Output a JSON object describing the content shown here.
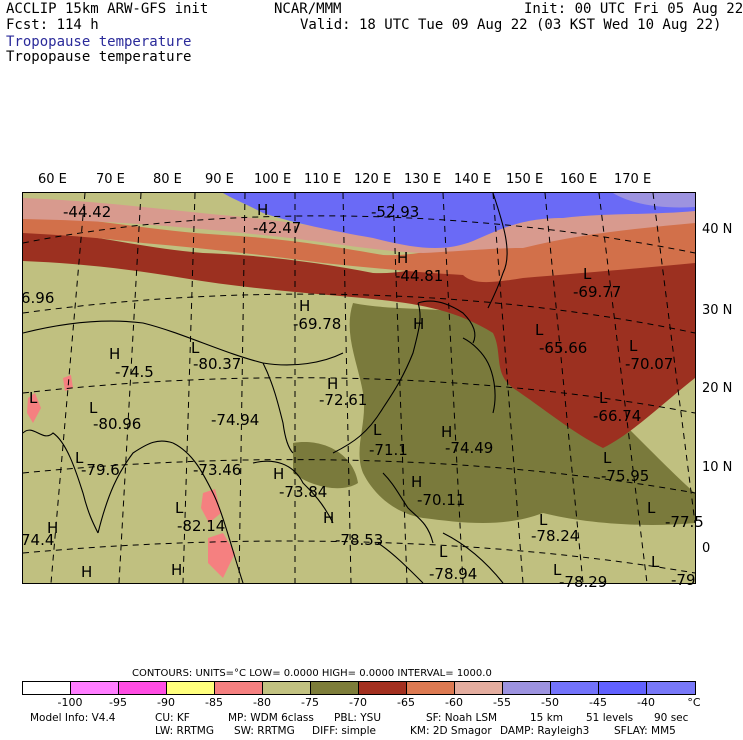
{
  "header": {
    "model": "ACCLIP 15km ARW-GFS init",
    "center": "NCAR/MMM",
    "init": "Init: 00 UTC Fri 05 Aug 22",
    "fcst": "Fcst:  114 h",
    "valid": "Valid: 18 UTC Tue 09 Aug 22 (03 KST Wed 10 Aug 22)",
    "field_title_1": "Tropopause temperature",
    "field_title_2": "Tropopause temperature"
  },
  "map": {
    "lon_labels": [
      "60 E",
      "70 E",
      "80 E",
      "90 E",
      "100 E",
      "110 E",
      "120 E",
      "130 E",
      "140 E",
      "150 E",
      "160 E",
      "170 E"
    ],
    "lat_labels": [
      "40 N",
      "30 N",
      "20 N",
      "10 N",
      "0"
    ],
    "annotations": [
      {
        "text": "-44.42"
      },
      {
        "text": "H"
      },
      {
        "text": "-42.47"
      },
      {
        "text": "-52.93"
      },
      {
        "text": "H"
      },
      {
        "text": "-44.81"
      },
      {
        "text": "L"
      },
      {
        "text": "-69.77"
      },
      {
        "text": "6.96"
      },
      {
        "text": "H"
      },
      {
        "text": "-69.78"
      },
      {
        "text": "L"
      },
      {
        "text": "-65.66"
      },
      {
        "text": "L"
      },
      {
        "text": "-70.07"
      },
      {
        "text": "L"
      },
      {
        "text": "-80.37"
      },
      {
        "text": "H"
      },
      {
        "text": "-74.5"
      },
      {
        "text": "H"
      },
      {
        "text": "-72.61"
      },
      {
        "text": "L"
      },
      {
        "text": "-66.74"
      },
      {
        "text": "L"
      },
      {
        "text": "-80.96"
      },
      {
        "text": "-74.94"
      },
      {
        "text": "L"
      },
      {
        "text": "H"
      },
      {
        "text": "-74.49"
      },
      {
        "text": "-71.1"
      },
      {
        "text": "L"
      },
      {
        "text": "-79.6"
      },
      {
        "text": "-73.46"
      },
      {
        "text": "L"
      },
      {
        "text": "-75.95"
      },
      {
        "text": "H"
      },
      {
        "text": "-73.84"
      },
      {
        "text": "H"
      },
      {
        "text": "-70.11"
      },
      {
        "text": "L"
      },
      {
        "text": "-82.14"
      },
      {
        "text": "-78.53"
      },
      {
        "text": "L"
      },
      {
        "text": "-78.24"
      },
      {
        "text": "-77.5"
      },
      {
        "text": "74.4"
      },
      {
        "text": "H"
      },
      {
        "text": "H"
      },
      {
        "text": "L"
      },
      {
        "text": "H"
      },
      {
        "text": "-78.94"
      },
      {
        "text": "L"
      },
      {
        "text": "-78.29"
      },
      {
        "text": "-79"
      },
      {
        "text": "H"
      },
      {
        "text": "L"
      },
      {
        "text": "L"
      },
      {
        "text": "L"
      },
      {
        "text": "H"
      }
    ]
  },
  "legend": {
    "contours_text": "CONTOURS:  UNITS=°C  LOW=  0.0000       HIGH=  0.0000       INTERVAL=   1000.0",
    "bins": [
      {
        "color": "#ffffff"
      },
      {
        "color": "#ff7dff"
      },
      {
        "color": "#ff4de3"
      },
      {
        "color": "#ffff7d"
      },
      {
        "color": "#f58080"
      },
      {
        "color": "#c2c281"
      },
      {
        "color": "#7d7d3a"
      },
      {
        "color": "#a33020"
      },
      {
        "color": "#dd7a52"
      },
      {
        "color": "#e4ad9f"
      },
      {
        "color": "#9d93e0"
      },
      {
        "color": "#7373fb"
      },
      {
        "color": "#6161ff"
      },
      {
        "color": "#7878f8"
      }
    ],
    "ticks": [
      "-100",
      "-95",
      "-90",
      "-85",
      "-80",
      "-75",
      "-70",
      "-65",
      "-60",
      "-55",
      "-50",
      "-45",
      "-40",
      "°C"
    ]
  },
  "footer": {
    "line1": [
      "Model Info: V4.4",
      "CU: KF",
      "MP: WDM 6class",
      "PBL: YSU",
      "SF: Noah LSM",
      "15 km",
      "51 levels",
      "90 sec"
    ],
    "line2": [
      "LW: RRTMG",
      "SW: RRTMG",
      "DIFF: simple",
      "KM: 2D Smagor",
      "DAMP: Rayleigh3",
      "SFLAY: MM5"
    ]
  },
  "colors": {
    "purple_band": "#6a6af6",
    "pink_band": "#d89a8e",
    "orange_band": "#d2704a",
    "red_band": "#9c3020",
    "olive_light": "#c0c080",
    "olive_dark": "#7a7a3c",
    "land_lines": "#000000"
  }
}
